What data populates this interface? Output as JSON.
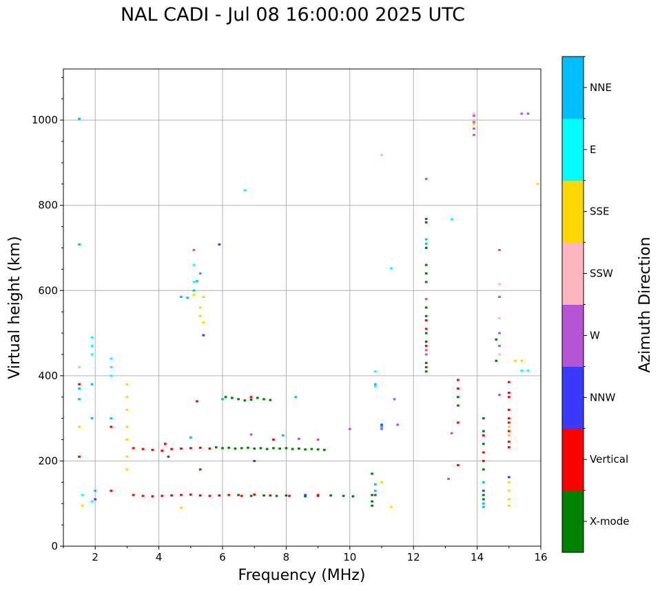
{
  "chart_data": {
    "type": "scatter",
    "title": "NAL CADI - Jul 08 16:00:00 2025 UTC",
    "xlabel": "Frequency (MHz)",
    "ylabel": "Virtual height (km)",
    "xlim": [
      1,
      16
    ],
    "ylim": [
      0,
      1120
    ],
    "xticks": [
      2,
      4,
      6,
      8,
      10,
      12,
      14,
      16
    ],
    "yticks": [
      0,
      200,
      400,
      600,
      800,
      1000
    ],
    "grid": true,
    "colorbar": {
      "label": "Azimuth Direction",
      "categories": [
        {
          "name": "X-mode",
          "color": "#008000"
        },
        {
          "name": "Vertical",
          "color": "#ff0000"
        },
        {
          "name": "NNW",
          "color": "#3a3aff"
        },
        {
          "name": "W",
          "color": "#b555d6"
        },
        {
          "name": "SSW",
          "color": "#ffb6c1"
        },
        {
          "name": "SSE",
          "color": "#ffd700"
        },
        {
          "name": "E",
          "color": "#00ffff"
        },
        {
          "name": "NNE",
          "color": "#00bfff"
        }
      ]
    },
    "point_width_mhz": 0.08,
    "point_height_km": 5,
    "series": [
      {
        "name": "X-mode",
        "points": [
          [
            6.1,
            350
          ],
          [
            6.3,
            348
          ],
          [
            6.5,
            345
          ],
          [
            6.7,
            342
          ],
          [
            6.9,
            344
          ],
          [
            7.1,
            348
          ],
          [
            7.3,
            345
          ],
          [
            7.5,
            343
          ],
          [
            5.8,
            232
          ],
          [
            6.0,
            230
          ],
          [
            6.2,
            231
          ],
          [
            6.4,
            229
          ],
          [
            6.6,
            230
          ],
          [
            6.8,
            231
          ],
          [
            7.0,
            229
          ],
          [
            7.2,
            230
          ],
          [
            7.4,
            228
          ],
          [
            7.6,
            230
          ],
          [
            7.8,
            229
          ],
          [
            8.0,
            230
          ],
          [
            8.2,
            228
          ],
          [
            8.4,
            229
          ],
          [
            8.6,
            227
          ],
          [
            8.8,
            228
          ],
          [
            9.0,
            227
          ],
          [
            9.2,
            226
          ],
          [
            6.5,
            120
          ],
          [
            6.9,
            118
          ],
          [
            7.3,
            119
          ],
          [
            7.7,
            118
          ],
          [
            8.0,
            119
          ],
          [
            8.6,
            117
          ],
          [
            9.0,
            118
          ],
          [
            9.4,
            119
          ],
          [
            9.8,
            118
          ],
          [
            10.1,
            117
          ],
          [
            10.7,
            120
          ],
          [
            10.7,
            105
          ],
          [
            10.7,
            95
          ],
          [
            10.7,
            170
          ],
          [
            12.4,
            760
          ],
          [
            12.4,
            700
          ],
          [
            12.4,
            660
          ],
          [
            12.4,
            640
          ],
          [
            12.4,
            620
          ],
          [
            12.4,
            560
          ],
          [
            12.4,
            540
          ],
          [
            12.4,
            500
          ],
          [
            12.4,
            480
          ],
          [
            12.4,
            430
          ],
          [
            12.4,
            410
          ],
          [
            13.4,
            350
          ],
          [
            13.4,
            330
          ],
          [
            14.2,
            300
          ],
          [
            14.2,
            270
          ],
          [
            14.2,
            240
          ],
          [
            14.2,
            180
          ],
          [
            14.2,
            120
          ],
          [
            14.2,
            110
          ],
          [
            14.6,
            485
          ],
          [
            14.6,
            435
          ]
        ]
      },
      {
        "name": "Vertical",
        "points": [
          [
            3.2,
            230
          ],
          [
            3.5,
            228
          ],
          [
            3.8,
            226
          ],
          [
            4.1,
            224
          ],
          [
            4.4,
            228
          ],
          [
            4.7,
            229
          ],
          [
            5.0,
            230
          ],
          [
            5.3,
            231
          ],
          [
            5.6,
            229
          ],
          [
            3.2,
            120
          ],
          [
            3.5,
            118
          ],
          [
            3.8,
            117
          ],
          [
            4.1,
            118
          ],
          [
            4.4,
            119
          ],
          [
            4.7,
            120
          ],
          [
            5.0,
            121
          ],
          [
            5.3,
            119
          ],
          [
            5.6,
            118
          ],
          [
            5.9,
            119
          ],
          [
            6.2,
            120
          ],
          [
            6.6,
            118
          ],
          [
            7.0,
            121
          ],
          [
            7.5,
            119
          ],
          [
            8.1,
            118
          ],
          [
            9.0,
            120
          ],
          [
            1.5,
            380
          ],
          [
            1.5,
            210
          ],
          [
            2.5,
            130
          ],
          [
            2.5,
            280
          ],
          [
            4.2,
            240
          ],
          [
            5.2,
            340
          ],
          [
            6.9,
            350
          ],
          [
            7.6,
            250
          ],
          [
            12.4,
            530
          ],
          [
            12.4,
            510
          ],
          [
            12.4,
            470
          ],
          [
            12.4,
            420
          ],
          [
            13.4,
            390
          ],
          [
            13.4,
            370
          ],
          [
            13.4,
            290
          ],
          [
            13.4,
            190
          ],
          [
            14.2,
            260
          ],
          [
            14.2,
            220
          ],
          [
            14.2,
            200
          ],
          [
            15.0,
            385
          ],
          [
            15.0,
            360
          ],
          [
            15.0,
            350
          ],
          [
            15.0,
            320
          ],
          [
            15.0,
            300
          ],
          [
            15.0,
            290
          ],
          [
            15.0,
            270
          ],
          [
            15.0,
            245
          ],
          [
            15.0,
            232
          ]
        ]
      },
      {
        "name": "NNW",
        "points": [
          [
            5.4,
            495
          ],
          [
            5.9,
            708
          ],
          [
            2.0,
            110
          ],
          [
            4.3,
            210
          ],
          [
            5.3,
            180
          ],
          [
            7.0,
            200
          ],
          [
            8.6,
            120
          ],
          [
            10.8,
            120
          ],
          [
            11.0,
            285
          ],
          [
            12.4,
            768
          ],
          [
            14.2,
            130
          ],
          [
            15.0,
            162
          ]
        ]
      },
      {
        "name": "W",
        "points": [
          [
            5.1,
            695
          ],
          [
            6.9,
            262
          ],
          [
            8.4,
            252
          ],
          [
            9.0,
            250
          ],
          [
            10.0,
            275
          ],
          [
            11.0,
            275
          ],
          [
            11.4,
            345
          ],
          [
            11.5,
            285
          ],
          [
            12.4,
            862
          ],
          [
            12.4,
            580
          ],
          [
            12.4,
            460
          ],
          [
            12.4,
            450
          ],
          [
            13.1,
            158
          ],
          [
            13.2,
            265
          ],
          [
            13.9,
            1010
          ],
          [
            13.9,
            995
          ],
          [
            13.9,
            980
          ],
          [
            13.9,
            965
          ],
          [
            14.7,
            695
          ],
          [
            14.7,
            585
          ],
          [
            14.7,
            500
          ],
          [
            14.7,
            470
          ],
          [
            14.7,
            355
          ],
          [
            15.4,
            1015
          ],
          [
            15.6,
            1015
          ]
        ]
      },
      {
        "name": "SSW",
        "points": [
          [
            1.5,
            420
          ],
          [
            11.0,
            918
          ],
          [
            13.9,
            1015
          ],
          [
            13.9,
            1000
          ],
          [
            14.7,
            615
          ],
          [
            14.7,
            535
          ],
          [
            14.7,
            450
          ]
        ]
      },
      {
        "name": "SSE",
        "points": [
          [
            3.0,
            380
          ],
          [
            3.0,
            350
          ],
          [
            3.0,
            320
          ],
          [
            3.0,
            280
          ],
          [
            3.0,
            250
          ],
          [
            3.0,
            210
          ],
          [
            3.0,
            180
          ],
          [
            5.3,
            560
          ],
          [
            5.3,
            540
          ],
          [
            5.4,
            525
          ],
          [
            5.1,
            590
          ],
          [
            5.4,
            585
          ],
          [
            4.7,
            90
          ],
          [
            11.0,
            150
          ],
          [
            11.3,
            92
          ],
          [
            13.9,
            990
          ],
          [
            15.0,
            150
          ],
          [
            15.0,
            130
          ],
          [
            15.0,
            110
          ],
          [
            15.0,
            95
          ],
          [
            15.0,
            280
          ],
          [
            15.0,
            260
          ],
          [
            15.2,
            435
          ],
          [
            15.4,
            435
          ],
          [
            15.9,
            850
          ],
          [
            1.6,
            95
          ],
          [
            1.5,
            280
          ]
        ]
      },
      {
        "name": "E",
        "points": [
          [
            1.9,
            490
          ],
          [
            1.9,
            470
          ],
          [
            1.9,
            450
          ],
          [
            2.5,
            440
          ],
          [
            2.5,
            420
          ],
          [
            2.5,
            400
          ],
          [
            5.1,
            620
          ],
          [
            5.1,
            660
          ],
          [
            6.7,
            835
          ],
          [
            10.8,
            410
          ],
          [
            10.8,
            375
          ],
          [
            11.3,
            652
          ],
          [
            13.2,
            767
          ],
          [
            15.4,
            412
          ],
          [
            15.6,
            412
          ],
          [
            1.6,
            120
          ],
          [
            1.9,
            105
          ]
        ]
      },
      {
        "name": "NNE",
        "points": [
          [
            1.5,
            1003
          ],
          [
            1.5,
            708
          ],
          [
            1.5,
            370
          ],
          [
            1.5,
            345
          ],
          [
            1.9,
            380
          ],
          [
            1.9,
            300
          ],
          [
            2.5,
            300
          ],
          [
            4.7,
            585
          ],
          [
            4.9,
            583
          ],
          [
            5.1,
            600
          ],
          [
            5.2,
            622
          ],
          [
            5.3,
            640
          ],
          [
            6.0,
            345
          ],
          [
            8.3,
            350
          ],
          [
            10.8,
            380
          ],
          [
            10.8,
            145
          ],
          [
            10.8,
            130
          ],
          [
            11.0,
            280
          ],
          [
            12.4,
            720
          ],
          [
            12.4,
            710
          ],
          [
            14.2,
            100
          ],
          [
            14.2,
            92
          ],
          [
            14.2,
            150
          ],
          [
            2.0,
            130
          ],
          [
            5.0,
            255
          ],
          [
            7.9,
            260
          ]
        ]
      }
    ]
  }
}
